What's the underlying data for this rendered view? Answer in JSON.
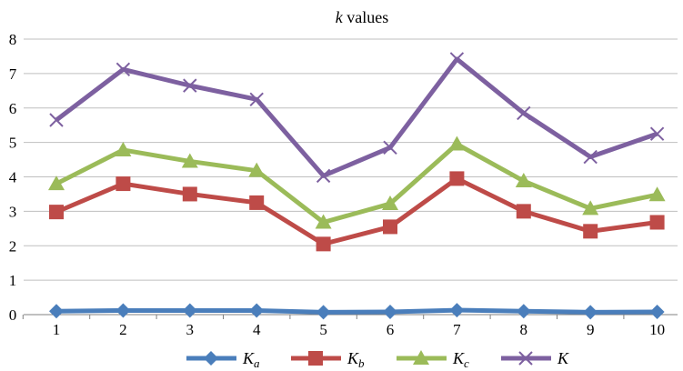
{
  "chart_data": {
    "type": "line",
    "title": "k values",
    "title_italic_part": "k",
    "title_rest": " values",
    "x": [
      1,
      2,
      3,
      4,
      5,
      6,
      7,
      8,
      9,
      10
    ],
    "ylim": [
      0,
      8
    ],
    "yticks": [
      0,
      1,
      2,
      3,
      4,
      5,
      6,
      7,
      8
    ],
    "grid": true,
    "legend": "bottom",
    "series": [
      {
        "name": "Ka",
        "label_main": "K",
        "label_sub": "a",
        "color": "#4a7ebb",
        "marker": "diamond",
        "values": [
          0.1,
          0.12,
          0.12,
          0.12,
          0.07,
          0.08,
          0.13,
          0.1,
          0.07,
          0.08
        ]
      },
      {
        "name": "Kb",
        "label_main": "K",
        "label_sub": "b",
        "color": "#be4b48",
        "marker": "square",
        "values": [
          2.98,
          3.8,
          3.5,
          3.25,
          2.05,
          2.55,
          3.95,
          3.0,
          2.42,
          2.68
        ]
      },
      {
        "name": "Kc",
        "label_main": "K",
        "label_sub": "c",
        "color": "#9bbb59",
        "marker": "triangle",
        "values": [
          3.8,
          4.78,
          4.45,
          4.18,
          2.68,
          3.22,
          4.95,
          3.88,
          3.08,
          3.48
        ]
      },
      {
        "name": "K",
        "label_main": "K",
        "label_sub": "",
        "color": "#7d60a0",
        "marker": "x",
        "values": [
          5.65,
          7.12,
          6.65,
          6.25,
          4.03,
          4.85,
          7.42,
          5.85,
          4.58,
          5.25
        ]
      }
    ]
  }
}
